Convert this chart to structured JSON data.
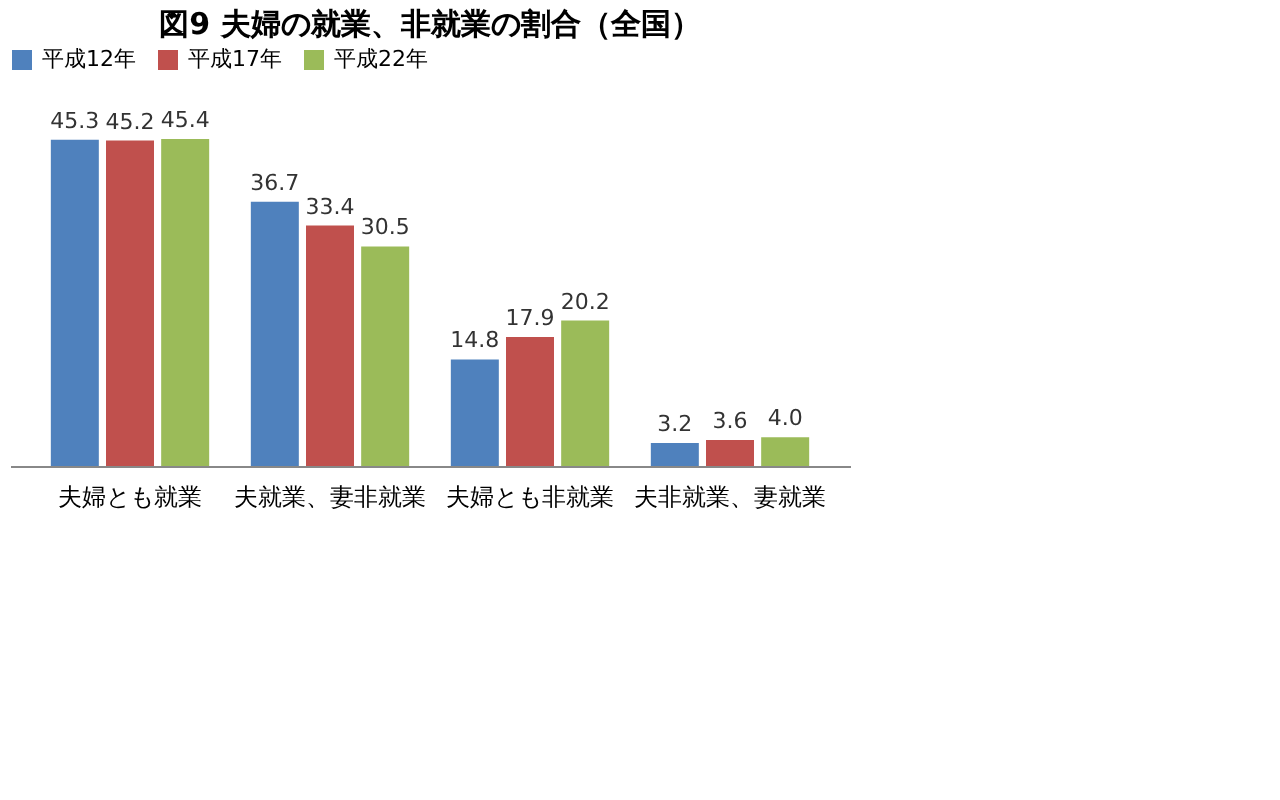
{
  "chart_data": {
    "type": "bar",
    "title": "図9 夫婦の就業、非就業の割合（全国）",
    "categories": [
      "夫婦とも就業",
      "夫就業、妻非就業",
      "夫婦とも非就業",
      "夫非就業、妻就業"
    ],
    "series": [
      {
        "name": "平成12年",
        "color": "#4f81bd",
        "values": [
          45.3,
          36.7,
          14.8,
          3.2
        ],
        "value_labels": [
          "45.3",
          "36.7",
          "14.8",
          "3.2"
        ]
      },
      {
        "name": "平成17年",
        "color": "#c0504d",
        "values": [
          45.2,
          33.4,
          17.9,
          3.6
        ],
        "value_labels": [
          "45.2",
          "33.4",
          "17.9",
          "3.6"
        ]
      },
      {
        "name": "平成22年",
        "color": "#9bbb59",
        "values": [
          45.4,
          30.5,
          20.2,
          4.0
        ],
        "value_labels": [
          "45.4",
          "30.5",
          "20.2",
          "4.0"
        ]
      }
    ],
    "legend": "top"
  }
}
